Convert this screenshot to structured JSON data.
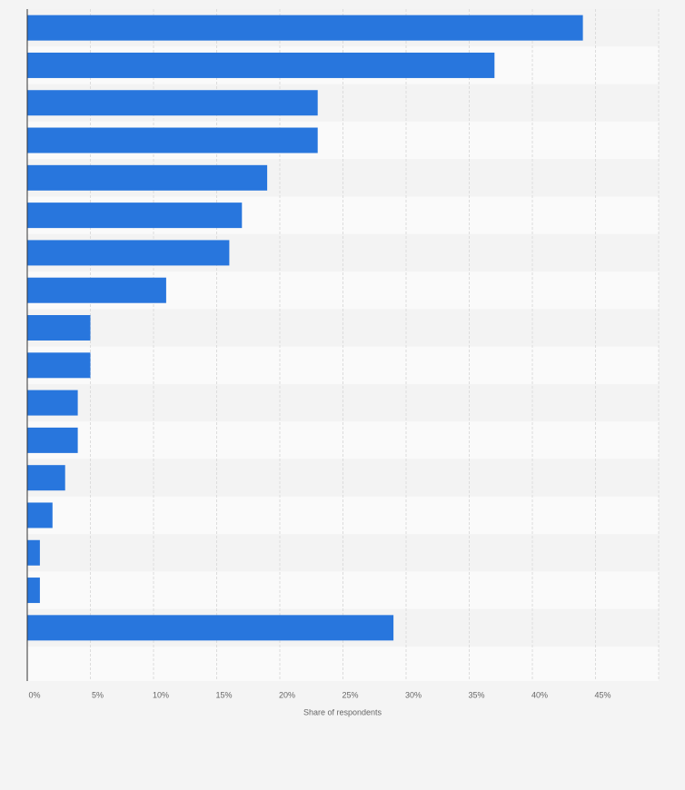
{
  "chart_data": {
    "type": "bar",
    "orientation": "horizontal",
    "values": [
      44,
      37,
      23,
      23,
      19,
      17,
      16,
      11,
      5,
      5,
      4,
      4,
      3,
      2,
      1,
      1,
      29
    ],
    "color": "#2876dd",
    "xlabel": "Share of respondents",
    "xlim": [
      0,
      50
    ],
    "xticks": [
      {
        "value": 0,
        "label": "0%"
      },
      {
        "value": 5,
        "label": "5%"
      },
      {
        "value": 10,
        "label": "10%"
      },
      {
        "value": 15,
        "label": "15%"
      },
      {
        "value": 20,
        "label": "20%"
      },
      {
        "value": 25,
        "label": "25%"
      },
      {
        "value": 30,
        "label": "30%"
      },
      {
        "value": 35,
        "label": "35%"
      },
      {
        "value": 40,
        "label": "40%"
      },
      {
        "value": 45,
        "label": "45%"
      }
    ],
    "grid": true
  }
}
